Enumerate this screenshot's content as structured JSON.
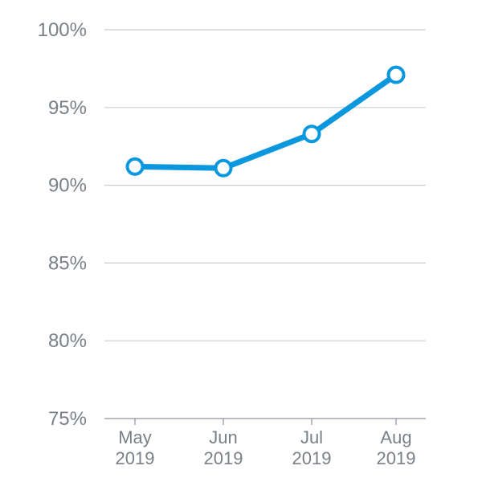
{
  "chart_data": {
    "type": "line",
    "categories": [
      {
        "line1": "May",
        "line2": "2019"
      },
      {
        "line1": "Jun",
        "line2": "2019"
      },
      {
        "line1": "Jul",
        "line2": "2019"
      },
      {
        "line1": "Aug",
        "line2": "2019"
      }
    ],
    "series": [
      {
        "values": [
          91.2,
          91.1,
          93.3,
          97.1
        ],
        "color": "#0a97de"
      }
    ],
    "ylim": [
      75,
      100
    ],
    "yticks": [
      "100%",
      "95%",
      "90%",
      "85%",
      "80%",
      "75%"
    ],
    "ytick_values": [
      100,
      95,
      90,
      85,
      80,
      75
    ],
    "grid": true,
    "legend": "none"
  }
}
